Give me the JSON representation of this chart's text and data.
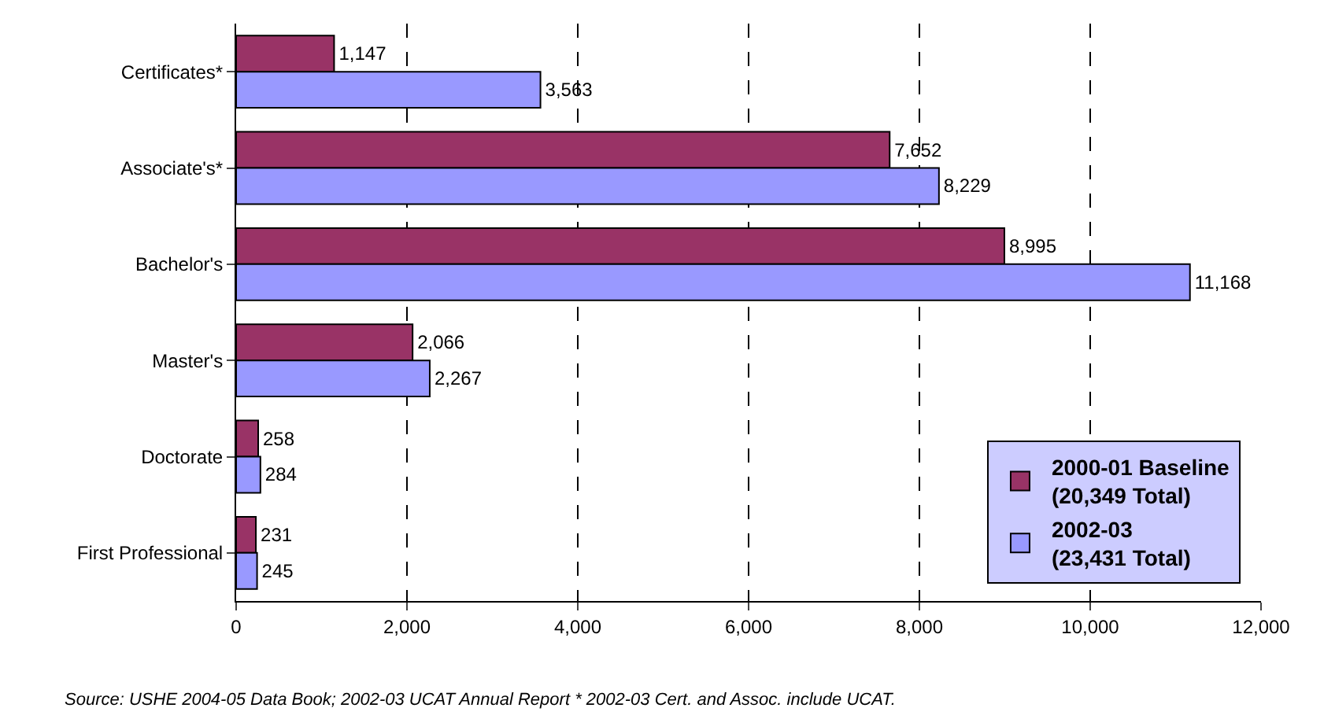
{
  "chart_data": {
    "type": "bar",
    "orientation": "horizontal",
    "categories": [
      "Certificates*",
      "Associate's*",
      "Bachelor's",
      "Master's",
      "Doctorate",
      "First Professional"
    ],
    "series": [
      {
        "name": "2000-01 Baseline\n(20,349 Total)",
        "color": "#993366",
        "values": [
          1147,
          7652,
          8995,
          2066,
          258,
          231
        ],
        "value_labels": [
          "1,147",
          "7,652",
          "8,995",
          "2,066",
          "258",
          "231"
        ]
      },
      {
        "name": "2002-03\n(23,431 Total)",
        "color": "#9999ff",
        "values": [
          3563,
          8229,
          11168,
          2267,
          284,
          245
        ],
        "value_labels": [
          "3,563",
          "8,229",
          "11,168",
          "2,267",
          "284",
          "245"
        ]
      }
    ],
    "xlim": [
      0,
      12000
    ],
    "xticks": [
      0,
      {
        "value": 2000,
        "label": "2,000"
      },
      {
        "value": 4000,
        "label": "4,000"
      },
      {
        "value": 6000,
        "label": "6,000"
      },
      {
        "value": 8000,
        "label": "8,000"
      },
      {
        "value": 10000,
        "label": "10,000"
      },
      {
        "value": 12000,
        "label": "12,000"
      }
    ],
    "grid": "x",
    "legend": "bottom right",
    "annotations": [
      "Source: USHE 2004-05 Data Book; 2002-03 UCAT Annual Report * 2002-03 Cert. and Assoc. include UCAT."
    ]
  }
}
